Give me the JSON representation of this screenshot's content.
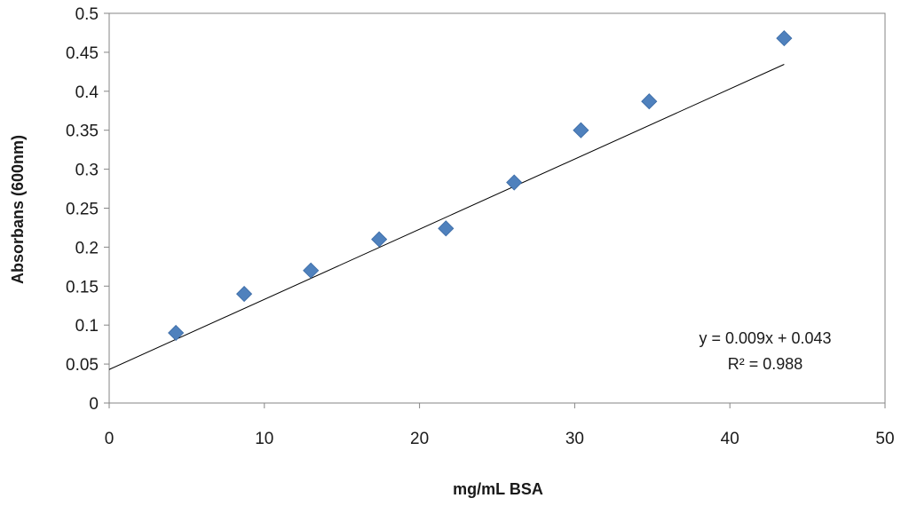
{
  "chart_data": {
    "type": "scatter",
    "title": "",
    "xlabel": "mg/mL BSA",
    "ylabel": "Absorbans (600nm)",
    "xlim": [
      0,
      50
    ],
    "ylim": [
      0,
      0.5
    ],
    "x_ticks": [
      0,
      10,
      20,
      30,
      40,
      50
    ],
    "y_ticks": [
      0,
      0.05,
      0.1,
      0.15,
      0.2,
      0.25,
      0.3,
      0.35,
      0.4,
      0.45,
      0.5
    ],
    "x_tick_labels": [
      "0",
      "10",
      "20",
      "30",
      "40",
      "50"
    ],
    "y_tick_labels": [
      "0",
      "0.05",
      "0.1",
      "0.15",
      "0.2",
      "0.25",
      "0.3",
      "0.35",
      "0.4",
      "0.45",
      "0.5"
    ],
    "grid": false,
    "legend": "none",
    "series": [
      {
        "marker": "diamond",
        "color": "#4f81bd",
        "points": [
          {
            "x": 4.3,
            "y": 0.09
          },
          {
            "x": 8.7,
            "y": 0.14
          },
          {
            "x": 13.0,
            "y": 0.17
          },
          {
            "x": 17.4,
            "y": 0.21
          },
          {
            "x": 21.7,
            "y": 0.224
          },
          {
            "x": 26.1,
            "y": 0.283
          },
          {
            "x": 30.4,
            "y": 0.35
          },
          {
            "x": 34.8,
            "y": 0.387
          },
          {
            "x": 43.5,
            "y": 0.468
          }
        ]
      }
    ],
    "trendline": {
      "type": "linear",
      "slope": 0.009,
      "intercept": 0.043,
      "x_range": [
        0,
        43.5
      ],
      "color": "#000000",
      "equation_text": "y = 0.009x + 0.043",
      "r2_text": "R² = 0.988"
    }
  }
}
